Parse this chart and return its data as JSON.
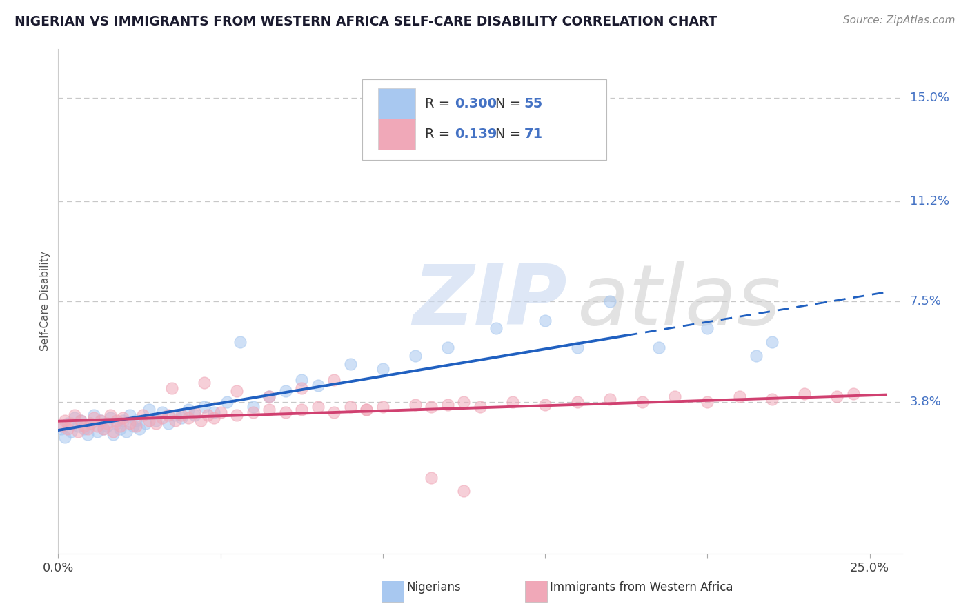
{
  "title": "NIGERIAN VS IMMIGRANTS FROM WESTERN AFRICA SELF-CARE DISABILITY CORRELATION CHART",
  "source": "Source: ZipAtlas.com",
  "ylabel": "Self-Care Disability",
  "xlim": [
    0.0,
    0.26
  ],
  "ylim": [
    -0.018,
    0.168
  ],
  "ytick_positions": [
    0.038,
    0.075,
    0.112,
    0.15
  ],
  "ytick_labels": [
    "3.8%",
    "7.5%",
    "11.2%",
    "15.0%"
  ],
  "grid_color": "#c8c8c8",
  "background_color": "#ffffff",
  "nigerian_color": "#a8c8f0",
  "immigrant_color": "#f0a8b8",
  "nigerian_line_color": "#2060c0",
  "immigrant_line_color": "#d04070",
  "r_nigerian": 0.3,
  "n_nigerian": 55,
  "r_immigrant": 0.139,
  "n_immigrant": 71,
  "legend_label_nigerian": "Nigerians",
  "legend_label_immigrant": "Immigrants from Western Africa",
  "watermark_zip": "ZIP",
  "watermark_atlas": "atlas",
  "nig_x": [
    0.001,
    0.002,
    0.003,
    0.004,
    0.005,
    0.006,
    0.007,
    0.008,
    0.009,
    0.01,
    0.011,
    0.012,
    0.013,
    0.014,
    0.015,
    0.016,
    0.017,
    0.018,
    0.019,
    0.02,
    0.021,
    0.022,
    0.023,
    0.024,
    0.025,
    0.027,
    0.028,
    0.03,
    0.032,
    0.034,
    0.036,
    0.038,
    0.04,
    0.042,
    0.045,
    0.048,
    0.052,
    0.056,
    0.06,
    0.065,
    0.07,
    0.075,
    0.08,
    0.09,
    0.1,
    0.11,
    0.12,
    0.135,
    0.15,
    0.16,
    0.17,
    0.185,
    0.2,
    0.215,
    0.22
  ],
  "nig_y": [
    0.028,
    0.025,
    0.03,
    0.027,
    0.032,
    0.029,
    0.031,
    0.028,
    0.026,
    0.03,
    0.033,
    0.027,
    0.031,
    0.028,
    0.029,
    0.032,
    0.026,
    0.03,
    0.028,
    0.031,
    0.027,
    0.033,
    0.029,
    0.031,
    0.028,
    0.03,
    0.035,
    0.031,
    0.034,
    0.03,
    0.033,
    0.032,
    0.035,
    0.033,
    0.036,
    0.034,
    0.038,
    0.06,
    0.036,
    0.04,
    0.042,
    0.046,
    0.044,
    0.052,
    0.05,
    0.055,
    0.058,
    0.065,
    0.068,
    0.058,
    0.075,
    0.058,
    0.065,
    0.055,
    0.06
  ],
  "imm_x": [
    0.001,
    0.002,
    0.003,
    0.004,
    0.005,
    0.006,
    0.007,
    0.008,
    0.009,
    0.01,
    0.011,
    0.012,
    0.013,
    0.014,
    0.015,
    0.016,
    0.017,
    0.018,
    0.019,
    0.02,
    0.022,
    0.024,
    0.026,
    0.028,
    0.03,
    0.032,
    0.034,
    0.036,
    0.038,
    0.04,
    0.042,
    0.044,
    0.046,
    0.048,
    0.05,
    0.055,
    0.06,
    0.065,
    0.07,
    0.075,
    0.08,
    0.085,
    0.09,
    0.095,
    0.1,
    0.11,
    0.115,
    0.12,
    0.125,
    0.13,
    0.14,
    0.15,
    0.16,
    0.17,
    0.18,
    0.19,
    0.2,
    0.21,
    0.22,
    0.23,
    0.24,
    0.245,
    0.115,
    0.125,
    0.035,
    0.045,
    0.055,
    0.065,
    0.075,
    0.085,
    0.095
  ],
  "imm_y": [
    0.029,
    0.031,
    0.028,
    0.03,
    0.033,
    0.027,
    0.031,
    0.029,
    0.028,
    0.03,
    0.032,
    0.029,
    0.031,
    0.028,
    0.03,
    0.033,
    0.027,
    0.031,
    0.029,
    0.032,
    0.03,
    0.029,
    0.033,
    0.031,
    0.03,
    0.032,
    0.033,
    0.031,
    0.033,
    0.032,
    0.034,
    0.031,
    0.033,
    0.032,
    0.034,
    0.033,
    0.034,
    0.035,
    0.034,
    0.035,
    0.036,
    0.034,
    0.036,
    0.035,
    0.036,
    0.037,
    0.036,
    0.037,
    0.038,
    0.036,
    0.038,
    0.037,
    0.038,
    0.039,
    0.038,
    0.04,
    0.038,
    0.04,
    0.039,
    0.041,
    0.04,
    0.041,
    0.01,
    0.005,
    0.043,
    0.045,
    0.042,
    0.04,
    0.043,
    0.046,
    0.035
  ]
}
